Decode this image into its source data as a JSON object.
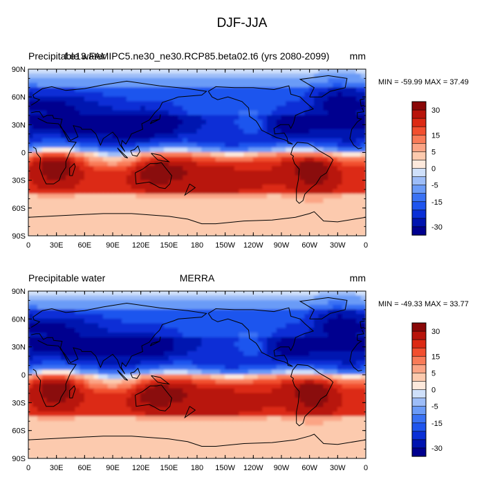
{
  "figure_title": "DJF-JJA",
  "colors": {
    "levels": [
      -30,
      -25,
      -20,
      -15,
      -10,
      -5,
      -2.5,
      0,
      2.5,
      5,
      10,
      15,
      20,
      25,
      30
    ],
    "palette": [
      "#00008f",
      "#0014b0",
      "#0a2fd6",
      "#1f55ee",
      "#3a72f4",
      "#6b9bf7",
      "#9dbdf8",
      "#cfe0fa",
      "#fde9dc",
      "#fccaae",
      "#fba485",
      "#f97b58",
      "#f24f2f",
      "#dc2a14",
      "#b8140b",
      "#8a0808"
    ]
  },
  "colorbar_ticks": [
    "30",
    "15",
    "5",
    "0",
    "-5",
    "-15",
    "-30"
  ],
  "chart_data": [
    {
      "type": "heatmap",
      "left_title": "Precipitable water",
      "center_title": "f.e13.FAMIPC5.ne30_ne30.RCP85.beta02.t6 (yrs 2080-2099)",
      "units": "mm",
      "stats": "MIN = -59.99 MAX =  37.49",
      "min": -59.99,
      "max": 37.49,
      "xlim": [
        0,
        360
      ],
      "ylim": [
        -90,
        90
      ],
      "x_ticks": [
        "0",
        "30E",
        "60E",
        "90E",
        "120E",
        "150E",
        "180",
        "150W",
        "120W",
        "90W",
        "60W",
        "30W",
        "0"
      ],
      "y_ticks": [
        "90N",
        "60N",
        "30N",
        "0",
        "30S",
        "60S",
        "90S"
      ],
      "grid": false
    },
    {
      "type": "heatmap",
      "left_title": "Precipitable water",
      "center_title": "MERRA",
      "units": "mm",
      "stats": "MIN = -49.33 MAX =  33.77",
      "min": -49.33,
      "max": 33.77,
      "xlim": [
        0,
        360
      ],
      "ylim": [
        -90,
        90
      ],
      "x_ticks": [
        "0",
        "30E",
        "60E",
        "90E",
        "120E",
        "150E",
        "180",
        "150W",
        "120W",
        "90W",
        "60W",
        "30W",
        "0"
      ],
      "y_ticks": [
        "90N",
        "60N",
        "30N",
        "0",
        "30S",
        "60S",
        "90S"
      ],
      "grid": false
    }
  ]
}
